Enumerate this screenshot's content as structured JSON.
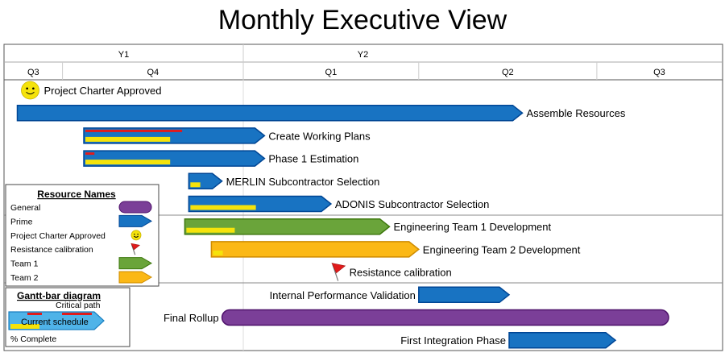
{
  "chart_data": {
    "type": "gantt",
    "title": "Monthly Executive View",
    "timescale": {
      "years": [
        {
          "label": "Y1",
          "start": 0,
          "end": 9
        },
        {
          "label": "Y2",
          "start": 9,
          "end": 18
        }
      ],
      "quarters": [
        {
          "label": "Q3",
          "start": 0,
          "end": 2.2
        },
        {
          "label": "Q4",
          "start": 2.2,
          "end": 9
        },
        {
          "label": "Q1",
          "start": 9,
          "end": 15.6
        },
        {
          "label": "Q2",
          "start": 15.6,
          "end": 22.3
        },
        {
          "label": "Q3",
          "start": 22.3,
          "end": 27
        }
      ],
      "total_months": 27
    },
    "tasks": [
      {
        "name": "Project Charter Approved",
        "kind": "milestone",
        "resource": "Project Charter Approved",
        "start": 0.5,
        "label_side": "right"
      },
      {
        "name": "Assemble Resources",
        "kind": "bar",
        "resource": "Prime",
        "start": 0.5,
        "end": 19.5,
        "percent_complete": 0,
        "critical": null,
        "label_side": "right"
      },
      {
        "name": "Create Working Plans",
        "kind": "bar",
        "resource": "Prime",
        "start": 3.0,
        "end": 9.8,
        "percent_complete": 50,
        "critical": [
          3.0,
          6.7
        ],
        "label_side": "right"
      },
      {
        "name": "Phase 1 Estimation",
        "kind": "bar",
        "resource": "Prime",
        "start": 3.0,
        "end": 9.8,
        "percent_complete": 50,
        "critical": [
          3.0,
          3.4
        ],
        "label_side": "right"
      },
      {
        "name": "MERLIN Subcontractor Selection",
        "kind": "bar",
        "resource": "Prime",
        "start": 6.95,
        "end": 8.2,
        "percent_complete": 45,
        "critical": null,
        "label_side": "right"
      },
      {
        "name": "ADONIS Subcontractor Selection",
        "kind": "bar",
        "resource": "Prime",
        "start": 6.95,
        "end": 12.3,
        "percent_complete": 50,
        "critical": null,
        "label_side": "right"
      },
      {
        "name": "Engineering Team 1 Development",
        "kind": "bar",
        "resource": "Team 1",
        "start": 6.8,
        "end": 14.5,
        "percent_complete": 25,
        "critical": null,
        "label_side": "right"
      },
      {
        "name": "Engineering Team 2 Development",
        "kind": "bar",
        "resource": "Team 2",
        "start": 7.8,
        "end": 15.6,
        "percent_complete": 5,
        "critical": null,
        "label_side": "right"
      },
      {
        "name": "Resistance calibration",
        "kind": "milestone",
        "resource": "Resistance calibration",
        "start": 12.2,
        "label_side": "right"
      },
      {
        "name": "Internal Performance Validation",
        "kind": "bar",
        "resource": "Prime",
        "start": 15.6,
        "end": 19.0,
        "percent_complete": 0,
        "critical": null,
        "label_side": "left"
      },
      {
        "name": "Final Rollup",
        "kind": "bar",
        "resource": "General",
        "start": 8.2,
        "end": 25.0,
        "percent_complete": 0,
        "critical": null,
        "label_side": "left"
      },
      {
        "name": "First Integration Phase",
        "kind": "bar",
        "resource": "Prime",
        "start": 19.0,
        "end": 23.0,
        "percent_complete": 0,
        "critical": null,
        "label_side": "left"
      }
    ],
    "legend": {
      "title": "Resource Names",
      "items": [
        {
          "label": "General",
          "color": "#7b3f98",
          "shape": "rounded"
        },
        {
          "label": "Prime",
          "color": "#1873c2",
          "shape": "arrow"
        },
        {
          "label": "Project Charter Approved",
          "color": "#f5e30b",
          "shape": "smiley"
        },
        {
          "label": "Resistance calibration",
          "color": "#e11b1b",
          "shape": "flag"
        },
        {
          "label": "Team 1",
          "color": "#6aa43a",
          "shape": "arrow"
        },
        {
          "label": "Team 2",
          "color": "#fbb816",
          "shape": "arrow"
        }
      ]
    },
    "key": {
      "title": "Gantt-bar diagram",
      "critical_path_label": "Critical path",
      "current_schedule_label": "Current schedule",
      "percent_complete_label": "% Complete"
    },
    "colors": {
      "prime": "#1873c2",
      "team1": "#6aa43a",
      "team2": "#fbb816",
      "general": "#7b3f98",
      "progress": "#f5e30b",
      "critical": "#e11b1b",
      "key_bar": "#4fb3e8"
    }
  }
}
